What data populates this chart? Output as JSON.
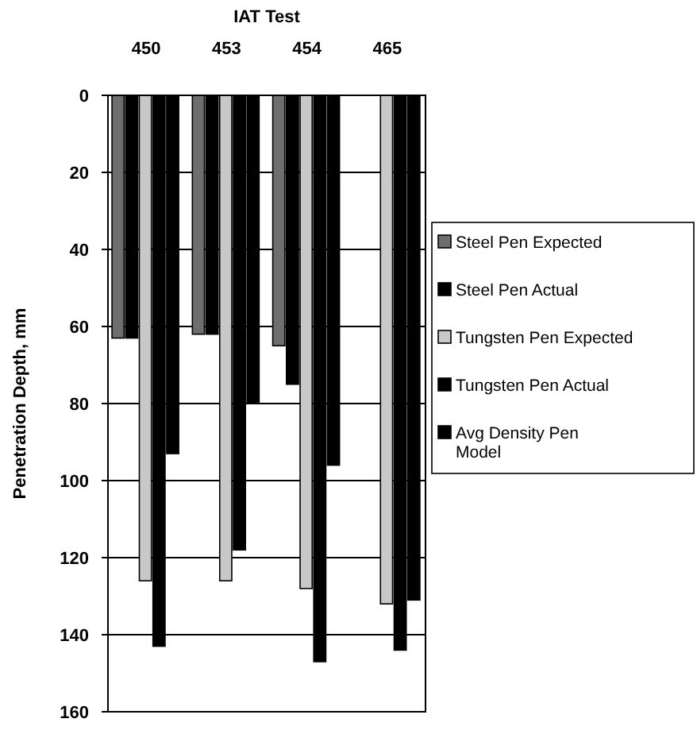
{
  "chart_data": {
    "type": "bar",
    "xlabel": "IAT Test",
    "ylabel": "Penetration Depth, mm",
    "categories": [
      "450",
      "453",
      "454",
      "465"
    ],
    "series": [
      {
        "name": "Steel Pen Expected",
        "color": "#6e6e6e",
        "values": [
          63,
          62,
          65,
          null
        ]
      },
      {
        "name": "Steel Pen Actual",
        "color": "#000000",
        "values": [
          63,
          62,
          75,
          null
        ]
      },
      {
        "name": "Tungsten Pen Expected",
        "color": "#c8c8c8",
        "values": [
          126,
          126,
          128,
          132
        ]
      },
      {
        "name": "Tungsten Pen Actual",
        "color": "#000000",
        "values": [
          143,
          118,
          147,
          144
        ]
      },
      {
        "name": "Avg Density Pen Model",
        "color": "#000000",
        "values": [
          93,
          80,
          96,
          131
        ]
      }
    ],
    "ylim": [
      160,
      0
    ],
    "yticks": [
      0,
      20,
      40,
      60,
      80,
      100,
      120,
      140,
      160
    ],
    "grid": "y",
    "legend": "right"
  }
}
